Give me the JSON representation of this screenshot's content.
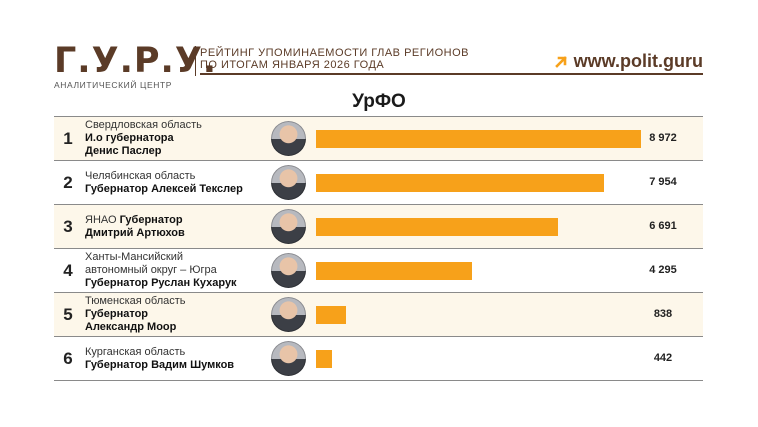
{
  "header": {
    "logo_text": "Г.У.Р.У.",
    "logo_subtitle": "АНАЛИТИЧЕСКИЙ ЦЕНТР",
    "headline_line1": "РЕЙТИНГ УПОМИНАЕМОСТИ ГЛАВ РЕГИОНОВ",
    "headline_line2": "ПО ИТОГАМ ЯНВАРЯ 2026 ГОДА",
    "website": "www.polit.guru",
    "arrow_icon": "arrow-up-right-icon",
    "brand_color": "#5b3b27",
    "accent_color": "#f7a11a"
  },
  "chart_data": {
    "type": "bar",
    "orientation": "horizontal",
    "title": "УрФО",
    "xlim": [
      0,
      8972
    ],
    "rows": [
      {
        "rank": "1",
        "lines": [
          {
            "text": "Свердловская область",
            "bold": false
          },
          {
            "text": "И.о губернатора",
            "bold": true
          },
          {
            "text": "Денис Паслер",
            "bold": true
          }
        ],
        "value": 8972,
        "value_label": "8 972"
      },
      {
        "rank": "2",
        "lines": [
          {
            "text": "Челябинская область",
            "bold": false
          },
          {
            "text": "Губернатор Алексей Текслер",
            "bold": true
          }
        ],
        "value": 7954,
        "value_label": "7 954"
      },
      {
        "rank": "3",
        "lines": [
          {
            "text": "ЯНАО",
            "bold": false,
            "inline": "Губернатор"
          },
          {
            "text": "Дмитрий Артюхов",
            "bold": true
          }
        ],
        "value": 6691,
        "value_label": "6 691"
      },
      {
        "rank": "4",
        "lines": [
          {
            "text": "Ханты-Мансийский",
            "bold": false
          },
          {
            "text": "автономный округ – Югра",
            "bold": false
          },
          {
            "text": "Губернатор Руслан Кухарук",
            "bold": true
          }
        ],
        "value": 4295,
        "value_label": "4 295"
      },
      {
        "rank": "5",
        "lines": [
          {
            "text": "Тюменская область",
            "bold": false
          },
          {
            "text": "Губернатор",
            "bold": true
          },
          {
            "text": "Александр Моор",
            "bold": true
          }
        ],
        "value": 838,
        "value_label": "838"
      },
      {
        "rank": "6",
        "lines": [
          {
            "text": "Курганская область",
            "bold": false
          },
          {
            "text": "Губернатор Вадим Шумков",
            "bold": true
          }
        ],
        "value": 442,
        "value_label": "442"
      }
    ]
  }
}
